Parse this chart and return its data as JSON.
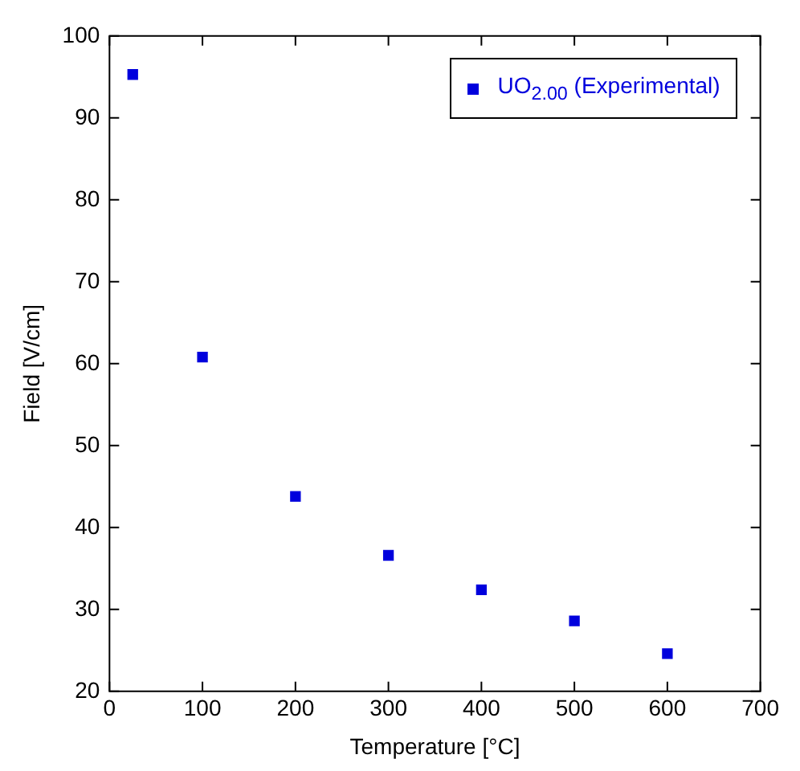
{
  "chart_data": {
    "type": "scatter",
    "xlabel": "Temperature [°C]",
    "ylabel": "Field [V/cm]",
    "x": [
      25,
      100,
      200,
      300,
      400,
      500,
      600
    ],
    "series": [
      {
        "name": "UO$_{2.00}$ (Experimental)",
        "color": "#0000dd",
        "values": [
          95.3,
          60.8,
          43.8,
          36.6,
          32.4,
          28.6,
          24.6
        ]
      }
    ],
    "xlim": [
      0,
      700
    ],
    "xticks": [
      0,
      100,
      200,
      300,
      400,
      500,
      600,
      700
    ],
    "ylim": [
      20,
      100
    ],
    "yticks": [
      20,
      30,
      40,
      50,
      60,
      70,
      80,
      90,
      100
    ],
    "grid": false,
    "legend": "top right",
    "marker": "square"
  }
}
